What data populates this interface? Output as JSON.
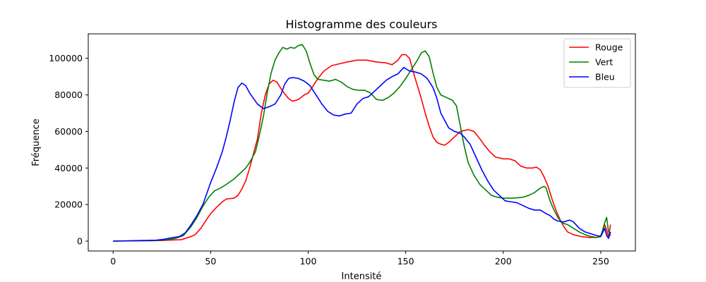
{
  "chart_data": {
    "type": "line",
    "title": "Histogramme des couleurs",
    "xlabel": "Intensité",
    "ylabel": "Fréquence",
    "xlim": [
      -12.75,
      267.75
    ],
    "ylim": [
      -5400,
      113400
    ],
    "xticks": [
      0,
      50,
      100,
      150,
      200,
      250
    ],
    "yticks": [
      0,
      20000,
      40000,
      60000,
      80000,
      100000
    ],
    "grid": false,
    "legend_position": "top-right",
    "series": [
      {
        "name": "Rouge",
        "color": "#ff0000",
        "points": [
          [
            0,
            0
          ],
          [
            25,
            300
          ],
          [
            30,
            600
          ],
          [
            35,
            800
          ],
          [
            40,
            2500
          ],
          [
            42,
            3500
          ],
          [
            45,
            7000
          ],
          [
            48,
            12000
          ],
          [
            50,
            15000
          ],
          [
            53,
            18500
          ],
          [
            56,
            21500
          ],
          [
            58,
            23000
          ],
          [
            62,
            23500
          ],
          [
            64,
            25000
          ],
          [
            66,
            28500
          ],
          [
            68,
            33000
          ],
          [
            70,
            40000
          ],
          [
            72,
            48000
          ],
          [
            74,
            56000
          ],
          [
            76,
            70000
          ],
          [
            78,
            80000
          ],
          [
            80,
            86000
          ],
          [
            82,
            88000
          ],
          [
            84,
            87000
          ],
          [
            86,
            83500
          ],
          [
            88,
            80500
          ],
          [
            90,
            78000
          ],
          [
            92,
            76500
          ],
          [
            95,
            77500
          ],
          [
            98,
            80000
          ],
          [
            100,
            81000
          ],
          [
            102,
            84000
          ],
          [
            105,
            89000
          ],
          [
            108,
            93000
          ],
          [
            112,
            96000
          ],
          [
            116,
            97000
          ],
          [
            120,
            98000
          ],
          [
            125,
            99000
          ],
          [
            130,
            99000
          ],
          [
            135,
            98000
          ],
          [
            140,
            97500
          ],
          [
            143,
            96500
          ],
          [
            146,
            99000
          ],
          [
            148,
            102000
          ],
          [
            150,
            102000
          ],
          [
            152,
            100000
          ],
          [
            154,
            92000
          ],
          [
            156,
            85000
          ],
          [
            158,
            78000
          ],
          [
            160,
            70000
          ],
          [
            162,
            63000
          ],
          [
            164,
            57000
          ],
          [
            166,
            54000
          ],
          [
            168,
            53000
          ],
          [
            170,
            52500
          ],
          [
            172,
            54000
          ],
          [
            175,
            57000
          ],
          [
            178,
            60000
          ],
          [
            182,
            61000
          ],
          [
            185,
            60000
          ],
          [
            188,
            56000
          ],
          [
            190,
            53000
          ],
          [
            193,
            49000
          ],
          [
            196,
            46000
          ],
          [
            200,
            45000
          ],
          [
            203,
            45000
          ],
          [
            206,
            44000
          ],
          [
            209,
            41000
          ],
          [
            212,
            40000
          ],
          [
            215,
            40000
          ],
          [
            217,
            40500
          ],
          [
            219,
            39000
          ],
          [
            221,
            35000
          ],
          [
            223,
            30000
          ],
          [
            225,
            23000
          ],
          [
            227,
            17000
          ],
          [
            229,
            12000
          ],
          [
            231,
            8000
          ],
          [
            233,
            5000
          ],
          [
            236,
            3500
          ],
          [
            240,
            2500
          ],
          [
            244,
            2000
          ],
          [
            248,
            2000
          ],
          [
            250,
            3000
          ],
          [
            252,
            9000
          ],
          [
            253,
            6000
          ],
          [
            254,
            2000
          ],
          [
            255,
            9000
          ]
        ]
      },
      {
        "name": "Vert",
        "color": "#008000",
        "points": [
          [
            0,
            0
          ],
          [
            22,
            300
          ],
          [
            28,
            800
          ],
          [
            32,
            1500
          ],
          [
            36,
            3000
          ],
          [
            40,
            8000
          ],
          [
            43,
            13000
          ],
          [
            46,
            19000
          ],
          [
            49,
            24000
          ],
          [
            52,
            27500
          ],
          [
            55,
            29000
          ],
          [
            58,
            31000
          ],
          [
            62,
            34000
          ],
          [
            66,
            38000
          ],
          [
            68,
            40000
          ],
          [
            70,
            43000
          ],
          [
            73,
            49000
          ],
          [
            75,
            58000
          ],
          [
            77,
            68000
          ],
          [
            79,
            81000
          ],
          [
            81,
            92000
          ],
          [
            83,
            99000
          ],
          [
            85,
            103000
          ],
          [
            87,
            106000
          ],
          [
            89,
            105000
          ],
          [
            91,
            106000
          ],
          [
            93,
            105500
          ],
          [
            95,
            107000
          ],
          [
            97,
            107500
          ],
          [
            99,
            104000
          ],
          [
            101,
            97000
          ],
          [
            103,
            91000
          ],
          [
            105,
            88500
          ],
          [
            108,
            88000
          ],
          [
            111,
            87500
          ],
          [
            114,
            88500
          ],
          [
            117,
            87000
          ],
          [
            120,
            84500
          ],
          [
            123,
            83000
          ],
          [
            126,
            82500
          ],
          [
            129,
            82500
          ],
          [
            132,
            81000
          ],
          [
            135,
            77500
          ],
          [
            138,
            77000
          ],
          [
            141,
            78500
          ],
          [
            144,
            81000
          ],
          [
            147,
            84500
          ],
          [
            150,
            89000
          ],
          [
            153,
            94000
          ],
          [
            156,
            99000
          ],
          [
            158,
            103000
          ],
          [
            160,
            104000
          ],
          [
            162,
            101000
          ],
          [
            164,
            92000
          ],
          [
            166,
            84000
          ],
          [
            168,
            80000
          ],
          [
            170,
            79000
          ],
          [
            172,
            78000
          ],
          [
            174,
            77000
          ],
          [
            176,
            74000
          ],
          [
            178,
            63000
          ],
          [
            180,
            52000
          ],
          [
            182,
            43000
          ],
          [
            185,
            36000
          ],
          [
            188,
            31000
          ],
          [
            191,
            28000
          ],
          [
            194,
            25000
          ],
          [
            197,
            24000
          ],
          [
            200,
            23500
          ],
          [
            205,
            23500
          ],
          [
            210,
            24000
          ],
          [
            213,
            25000
          ],
          [
            216,
            26500
          ],
          [
            219,
            29000
          ],
          [
            221,
            30000
          ],
          [
            222,
            29000
          ],
          [
            224,
            22000
          ],
          [
            226,
            17000
          ],
          [
            228,
            13000
          ],
          [
            230,
            10000
          ],
          [
            233,
            9000
          ],
          [
            236,
            7000
          ],
          [
            239,
            5000
          ],
          [
            242,
            3500
          ],
          [
            245,
            2500
          ],
          [
            248,
            2000
          ],
          [
            250,
            2500
          ],
          [
            252,
            10000
          ],
          [
            253,
            13000
          ],
          [
            254,
            5000
          ],
          [
            255,
            3000
          ]
        ]
      },
      {
        "name": "Bleu",
        "color": "#0000ff",
        "points": [
          [
            0,
            0
          ],
          [
            22,
            500
          ],
          [
            26,
            1000
          ],
          [
            30,
            1800
          ],
          [
            34,
            2500
          ],
          [
            37,
            4500
          ],
          [
            40,
            9000
          ],
          [
            43,
            14000
          ],
          [
            46,
            20000
          ],
          [
            48,
            26000
          ],
          [
            50,
            32000
          ],
          [
            53,
            40000
          ],
          [
            56,
            49000
          ],
          [
            58,
            57000
          ],
          [
            60,
            66000
          ],
          [
            62,
            76000
          ],
          [
            64,
            84000
          ],
          [
            66,
            86500
          ],
          [
            68,
            85000
          ],
          [
            70,
            81000
          ],
          [
            72,
            78000
          ],
          [
            74,
            75000
          ],
          [
            77,
            72500
          ],
          [
            80,
            73500
          ],
          [
            83,
            75000
          ],
          [
            86,
            80000
          ],
          [
            88,
            86000
          ],
          [
            90,
            89000
          ],
          [
            92,
            89500
          ],
          [
            95,
            89000
          ],
          [
            98,
            87500
          ],
          [
            101,
            85000
          ],
          [
            104,
            80000
          ],
          [
            107,
            75000
          ],
          [
            110,
            71000
          ],
          [
            113,
            69000
          ],
          [
            116,
            68500
          ],
          [
            119,
            69500
          ],
          [
            122,
            70000
          ],
          [
            125,
            75000
          ],
          [
            128,
            78000
          ],
          [
            131,
            79000
          ],
          [
            134,
            82000
          ],
          [
            137,
            85000
          ],
          [
            140,
            88000
          ],
          [
            143,
            90000
          ],
          [
            146,
            91500
          ],
          [
            149,
            95000
          ],
          [
            152,
            93000
          ],
          [
            155,
            92500
          ],
          [
            158,
            91500
          ],
          [
            161,
            89000
          ],
          [
            164,
            84000
          ],
          [
            166,
            78000
          ],
          [
            168,
            70000
          ],
          [
            170,
            66000
          ],
          [
            172,
            62000
          ],
          [
            175,
            60000
          ],
          [
            178,
            59000
          ],
          [
            180,
            57000
          ],
          [
            183,
            53000
          ],
          [
            186,
            46000
          ],
          [
            189,
            39000
          ],
          [
            192,
            33000
          ],
          [
            195,
            28000
          ],
          [
            198,
            25000
          ],
          [
            201,
            22000
          ],
          [
            204,
            21500
          ],
          [
            207,
            21000
          ],
          [
            210,
            19500
          ],
          [
            213,
            18000
          ],
          [
            216,
            17000
          ],
          [
            219,
            17000
          ],
          [
            222,
            15000
          ],
          [
            224,
            14000
          ],
          [
            226,
            12000
          ],
          [
            228,
            11000
          ],
          [
            231,
            10500
          ],
          [
            234,
            11500
          ],
          [
            236,
            10500
          ],
          [
            239,
            7000
          ],
          [
            242,
            5000
          ],
          [
            245,
            4000
          ],
          [
            248,
            3000
          ],
          [
            250,
            2500
          ],
          [
            252,
            7000
          ],
          [
            253,
            3000
          ],
          [
            254,
            1500
          ],
          [
            255,
            5000
          ]
        ]
      }
    ]
  }
}
